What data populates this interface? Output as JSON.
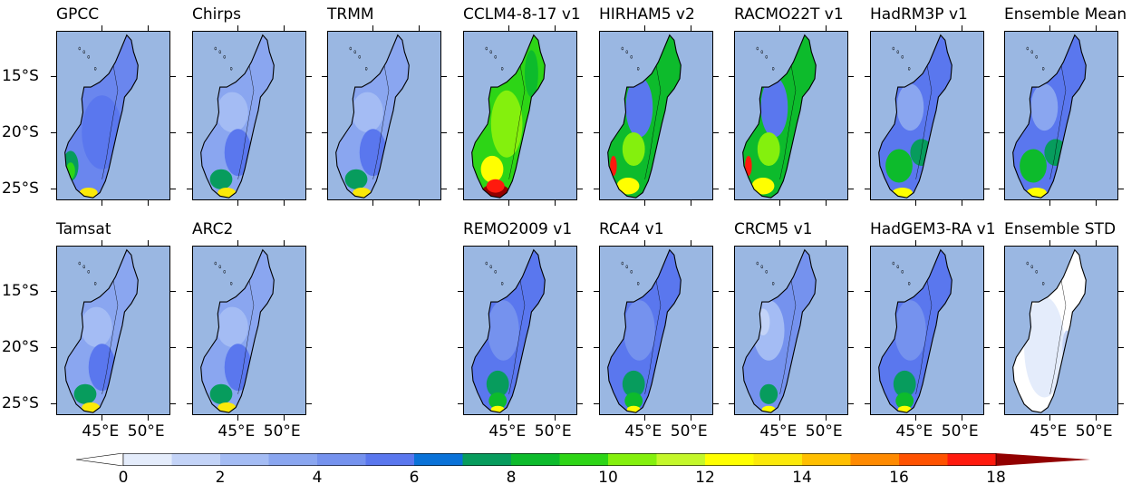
{
  "panels_row1": [
    {
      "id": "gpcc",
      "title": "GPCC",
      "style": "obs_blue"
    },
    {
      "id": "chirps",
      "title": "Chirps",
      "style": "obs_light"
    },
    {
      "id": "trmm",
      "title": "TRMM",
      "style": "obs_light"
    },
    {
      "id": "cclm",
      "title": "CCLM4-8-17 v1",
      "style": "wet_hot"
    },
    {
      "id": "hirham",
      "title": "HIRHAM5 v2",
      "style": "wet_green"
    },
    {
      "id": "racmo",
      "title": "RACMO22T v1",
      "style": "wet_green"
    },
    {
      "id": "hadrm3p",
      "title": "HadRM3P v1",
      "style": "mid_green"
    },
    {
      "id": "ens_mean",
      "title": "Ensemble Mean",
      "style": "mid_green"
    }
  ],
  "panels_row2": [
    {
      "id": "tamsat",
      "title": "Tamsat",
      "style": "obs_light"
    },
    {
      "id": "arc2",
      "title": "ARC2",
      "style": "obs_light"
    },
    {
      "id": "remo",
      "title": "REMO2009 v1",
      "style": "mid_blue"
    },
    {
      "id": "rca4",
      "title": "RCA4 v1",
      "style": "mid_blue"
    },
    {
      "id": "crcm5",
      "title": "CRCM5 v1",
      "style": "dry_light"
    },
    {
      "id": "hadgem",
      "title": "HadGEM3-RA v1",
      "style": "mid_blue"
    },
    {
      "id": "ens_std",
      "title": "Ensemble STD",
      "style": "std"
    }
  ],
  "axes": {
    "lat_labels": [
      "15°S",
      "20°S",
      "25°S"
    ],
    "lon_labels": [
      "45°E",
      "50°E"
    ]
  },
  "colorbar": {
    "labels": [
      "0",
      "2",
      "4",
      "6",
      "8",
      "10",
      "12",
      "14",
      "16",
      "18"
    ],
    "levels": [
      0,
      1,
      2,
      3,
      4,
      5,
      6,
      7,
      8,
      9,
      10,
      11,
      12,
      13,
      14,
      15,
      16,
      17,
      18,
      19
    ],
    "colors": [
      "#ffffff",
      "#e4ecfb",
      "#c3d3f7",
      "#a4bcf4",
      "#8aa6f0",
      "#7592ee",
      "#5a77ee",
      "#0a72d8",
      "#079c5d",
      "#0dbb2c",
      "#2dd516",
      "#84f00d",
      "#c4f72a",
      "#ffff00",
      "#fbe909",
      "#ffbf00",
      "#ff8a00",
      "#ff5200",
      "#ff1a0e",
      "#920000"
    ],
    "extend": "both"
  }
}
